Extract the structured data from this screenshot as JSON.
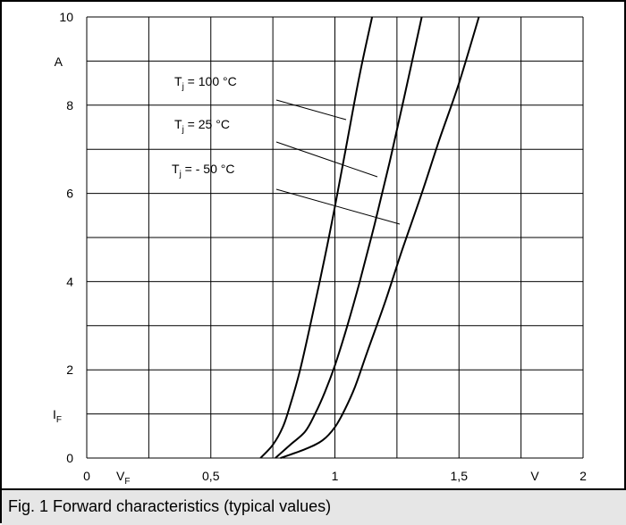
{
  "caption": "Fig. 1 Forward characteristics (typical values)",
  "chart_data": {
    "type": "line",
    "title": "",
    "xlabel": "V_F",
    "xunit": "V",
    "ylabel": "I_F",
    "yunit": "A",
    "xlim": [
      0,
      2
    ],
    "ylim": [
      0,
      10
    ],
    "grid": true,
    "x_tick_labels": [
      "0",
      "0,5",
      "1",
      "1,5",
      "2"
    ],
    "y_tick_labels": [
      "0",
      "2",
      "4",
      "6",
      "8",
      "10"
    ],
    "series": [
      {
        "name": "T_j = 100 °C",
        "label_main": "T",
        "label_sub": "j",
        "label_rest": " = 100 °C",
        "x": [
          0.7,
          0.75,
          0.79,
          0.82,
          0.86,
          0.9,
          0.95,
          1.0,
          1.05,
          1.1,
          1.15
        ],
        "y": [
          0.0,
          0.3,
          0.7,
          1.2,
          2.0,
          3.0,
          4.3,
          5.7,
          7.2,
          8.7,
          10.0
        ]
      },
      {
        "name": "T_j = 25 °C",
        "label_main": "T",
        "label_sub": "j",
        "label_rest": " = 25 °C",
        "x": [
          0.76,
          0.82,
          0.88,
          0.92,
          0.96,
          1.0,
          1.05,
          1.1,
          1.16,
          1.22,
          1.28,
          1.35
        ],
        "y": [
          0.0,
          0.3,
          0.6,
          1.0,
          1.5,
          2.1,
          3.0,
          4.0,
          5.3,
          6.7,
          8.2,
          10.0
        ]
      },
      {
        "name": "T_j = - 50 °C",
        "label_main": "T",
        "label_sub": "j",
        "label_rest": " = - 50 °C",
        "x": [
          0.78,
          0.88,
          0.95,
          1.0,
          1.04,
          1.08,
          1.13,
          1.2,
          1.27,
          1.35,
          1.42,
          1.5,
          1.58
        ],
        "y": [
          0.0,
          0.2,
          0.4,
          0.7,
          1.1,
          1.6,
          2.4,
          3.5,
          4.7,
          6.0,
          7.2,
          8.5,
          10.0
        ]
      }
    ],
    "colors": {
      "grid": "#000000",
      "curve": "#000000",
      "caption_bg": "#e6e6e6"
    }
  }
}
